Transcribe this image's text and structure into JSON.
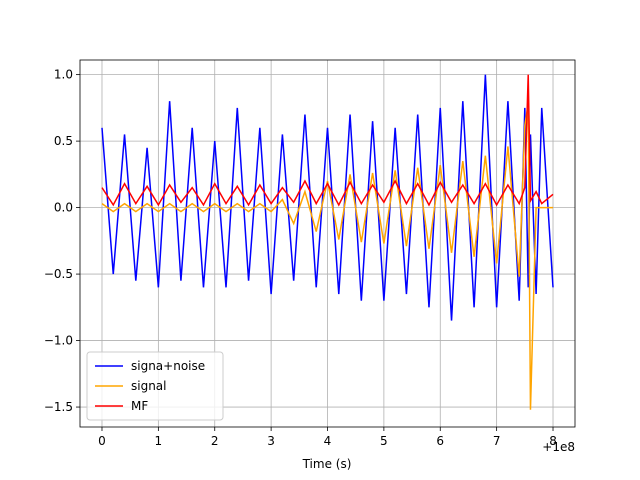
{
  "chart_data": {
    "type": "line",
    "x_label": "Time (s)",
    "x_offset_label": "+1e8",
    "x": [
      0,
      0.2,
      0.4,
      0.6,
      0.8,
      1.0,
      1.2,
      1.4,
      1.6,
      1.8,
      2.0,
      2.2,
      2.4,
      2.6,
      2.8,
      3.0,
      3.2,
      3.4,
      3.6,
      3.8,
      4.0,
      4.2,
      4.4,
      4.6,
      4.8,
      5.0,
      5.2,
      5.4,
      5.6,
      5.8,
      6.0,
      6.2,
      6.4,
      6.6,
      6.8,
      7.0,
      7.2,
      7.4,
      7.5,
      7.56,
      7.6,
      7.7,
      7.8,
      8.0
    ],
    "series": [
      {
        "name": "signa+noise",
        "color": "#0000ff",
        "values": [
          0.6,
          -0.5,
          0.55,
          -0.55,
          0.45,
          -0.6,
          0.8,
          -0.55,
          0.6,
          -0.6,
          0.5,
          -0.6,
          0.75,
          -0.55,
          0.6,
          -0.65,
          0.55,
          -0.55,
          0.7,
          -0.6,
          0.6,
          -0.65,
          0.7,
          -0.7,
          0.65,
          -0.7,
          0.6,
          -0.65,
          0.7,
          -0.75,
          0.75,
          -0.85,
          0.8,
          -0.75,
          1.0,
          -0.75,
          0.8,
          -0.7,
          0.75,
          -0.6,
          0.55,
          -0.65,
          0.75,
          -0.6
        ]
      },
      {
        "name": "signal",
        "color": "#ffa500",
        "values": [
          0.03,
          -0.03,
          0.03,
          -0.03,
          0.03,
          -0.03,
          0.03,
          -0.03,
          0.03,
          -0.03,
          0.03,
          -0.03,
          0.03,
          -0.03,
          0.03,
          -0.03,
          0.06,
          -0.12,
          0.12,
          -0.18,
          0.2,
          -0.24,
          0.25,
          -0.26,
          0.26,
          -0.27,
          0.28,
          -0.29,
          0.3,
          -0.31,
          0.32,
          -0.34,
          0.35,
          -0.37,
          0.39,
          -0.42,
          0.46,
          -0.52,
          0.62,
          0.78,
          -1.52,
          0.0,
          0.0,
          0.0
        ]
      },
      {
        "name": "MF",
        "color": "#ff0000",
        "values": [
          0.15,
          0.02,
          0.18,
          0.03,
          0.16,
          0.02,
          0.17,
          0.04,
          0.15,
          0.02,
          0.18,
          0.03,
          0.16,
          0.02,
          0.17,
          0.03,
          0.15,
          0.04,
          0.2,
          0.03,
          0.18,
          0.02,
          0.19,
          0.03,
          0.17,
          0.04,
          0.2,
          0.03,
          0.18,
          0.02,
          0.19,
          0.04,
          0.17,
          0.03,
          0.18,
          0.02,
          0.17,
          0.03,
          0.15,
          1.0,
          0.05,
          0.12,
          0.03,
          0.1
        ]
      }
    ],
    "xlim": [
      -0.39,
      8.39
    ],
    "ylim": [
      -1.65,
      1.11
    ],
    "xticks": [
      0,
      1,
      2,
      3,
      4,
      5,
      6,
      7,
      8
    ],
    "yticks": [
      {
        "value": -1.5,
        "label": "−1.5"
      },
      {
        "value": -1.0,
        "label": "−1.0"
      },
      {
        "value": -0.5,
        "label": "−0.5"
      },
      {
        "value": 0.0,
        "label": "0.0"
      },
      0.5,
      {
        "value": 1.0,
        "label": "1.0"
      }
    ],
    "grid": true,
    "legend": "lower-left"
  }
}
